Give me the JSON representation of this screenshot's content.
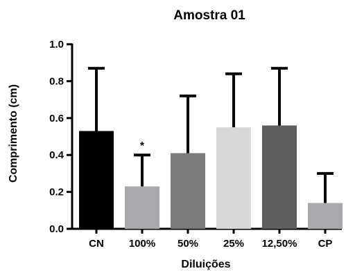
{
  "chart_data": {
    "type": "bar",
    "title": "Amostra 01",
    "xlabel": "Diluições",
    "ylabel": "Comprimento (cm)",
    "ylim": [
      0,
      1.0
    ],
    "yticks": [
      "0.0",
      "0.2",
      "0.4",
      "0.6",
      "0.8",
      "1.0"
    ],
    "grid": false,
    "categories": [
      "CN",
      "100%",
      "50%",
      "25%",
      "12,50%",
      "CP"
    ],
    "values": [
      0.53,
      0.23,
      0.41,
      0.55,
      0.56,
      0.14
    ],
    "errors": [
      0.34,
      0.17,
      0.31,
      0.29,
      0.31,
      0.16
    ],
    "colors": [
      "#000000",
      "#a9a9ad",
      "#7a7a7a",
      "#d8d8d8",
      "#5e5e5e",
      "#a9a9ad"
    ],
    "annotations": [
      {
        "category": "100%",
        "text": "*"
      }
    ]
  }
}
